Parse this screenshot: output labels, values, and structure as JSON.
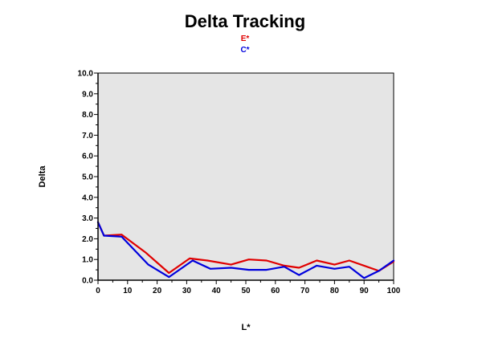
{
  "chart_data": {
    "type": "line",
    "title": "Delta Tracking",
    "xlabel": "L*",
    "ylabel": "Delta",
    "xlim": [
      0,
      100
    ],
    "ylim": [
      0,
      10
    ],
    "x_ticks": [
      "0",
      "10",
      "20",
      "30",
      "40",
      "50",
      "60",
      "70",
      "80",
      "90",
      "100"
    ],
    "y_ticks": [
      "0.0",
      "1.0",
      "2.0",
      "3.0",
      "4.0",
      "5.0",
      "6.0",
      "7.0",
      "8.0",
      "9.0",
      "10.0"
    ],
    "grid": false,
    "legend_position": "top-center",
    "plot_background": "#e5e5e5",
    "series": [
      {
        "name": "E*",
        "color": "#e00000",
        "x": [
          0,
          2,
          8,
          16,
          24,
          31,
          37,
          45,
          51,
          57,
          63,
          68,
          74,
          80,
          85,
          90,
          95,
          100
        ],
        "y": [
          2.8,
          2.15,
          2.2,
          1.35,
          0.35,
          1.05,
          0.95,
          0.75,
          1.0,
          0.95,
          0.7,
          0.6,
          0.95,
          0.75,
          0.95,
          0.7,
          0.45,
          0.9
        ]
      },
      {
        "name": "C*",
        "color": "#0000dd",
        "x": [
          0,
          2,
          8,
          17,
          24,
          32,
          38,
          45,
          51,
          57,
          63,
          68,
          74,
          80,
          85,
          90,
          95,
          100
        ],
        "y": [
          2.8,
          2.15,
          2.1,
          0.75,
          0.15,
          0.95,
          0.55,
          0.6,
          0.5,
          0.5,
          0.65,
          0.25,
          0.7,
          0.55,
          0.65,
          0.1,
          0.45,
          0.95
        ]
      }
    ]
  }
}
